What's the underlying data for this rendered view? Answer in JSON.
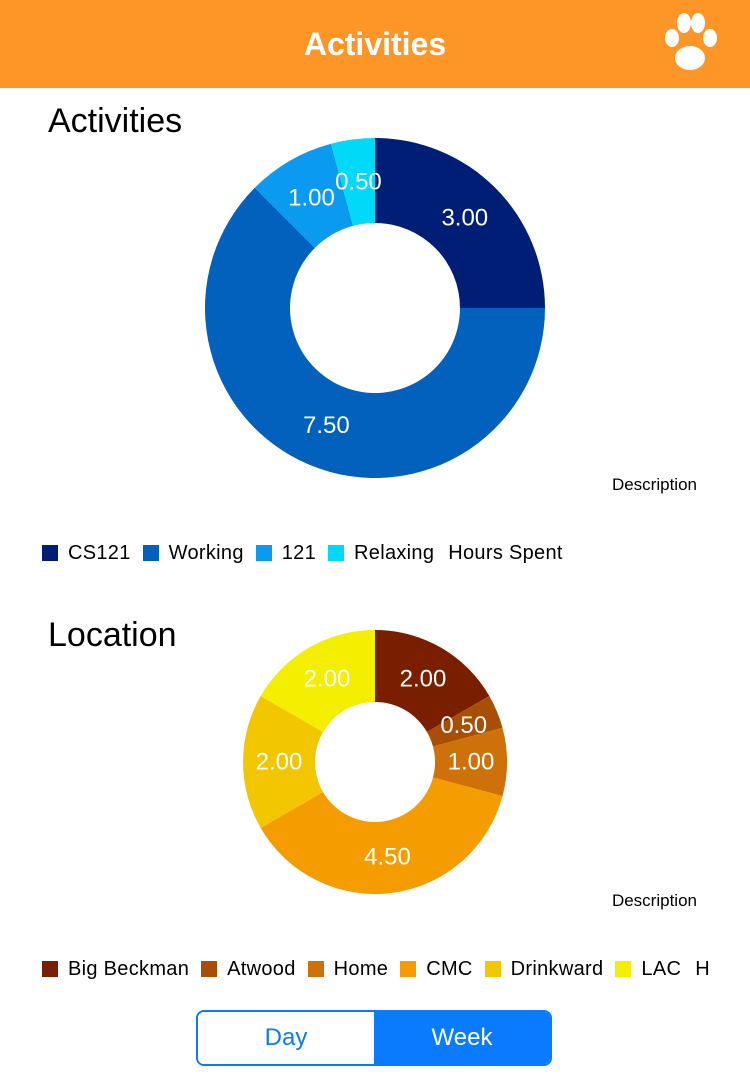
{
  "navbar": {
    "title": "Activities",
    "icon": "paw-icon",
    "color": "#FE9527"
  },
  "activities": {
    "title": "Activities",
    "description": "Description",
    "legend_series": "Hours Spent",
    "chart_data": {
      "type": "pie",
      "categories": [
        "CS121",
        "Working",
        "121",
        "Relaxing"
      ],
      "values": [
        3.0,
        7.5,
        1.0,
        0.5
      ],
      "labels": [
        "3.00",
        "7.50",
        "1.00",
        "0.50"
      ],
      "colors": [
        "#001E75",
        "#0161BD",
        "#0A9AF0",
        "#00D9F7"
      ],
      "series_name": "Hours Spent",
      "donut": true
    }
  },
  "location": {
    "title": "Location",
    "description": "Description",
    "legend_series": "H",
    "chart_data": {
      "type": "pie",
      "categories": [
        "Big Beckman",
        "Atwood",
        "Home",
        "CMC",
        "Drinkward",
        "LAC"
      ],
      "values": [
        2.0,
        0.5,
        1.0,
        4.5,
        2.0,
        2.0
      ],
      "labels": [
        "2.00",
        "0.50",
        "1.00",
        "4.50",
        "2.00",
        "2.00"
      ],
      "colors": [
        "#7A1E00",
        "#A84E05",
        "#CF7109",
        "#F59C00",
        "#F2C600",
        "#F4EE00"
      ],
      "donut": true
    }
  },
  "segmented": {
    "day": "Day",
    "week": "Week",
    "selected": "Week"
  }
}
